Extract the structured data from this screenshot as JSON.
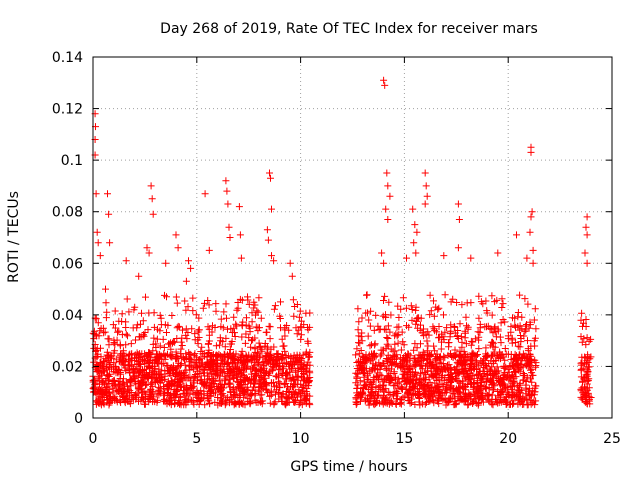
{
  "chart_data": {
    "type": "scatter",
    "title": "Day 268 of 2019, Rate Of TEC Index for receiver mars",
    "xlabel": "GPS time / hours",
    "ylabel": "ROTI / TECUs",
    "xlim": [
      0,
      25
    ],
    "ylim": [
      0,
      0.14
    ],
    "xticks": [
      0,
      5,
      10,
      15,
      20,
      25
    ],
    "yticks": [
      0,
      0.02,
      0.04,
      0.06,
      0.08,
      0.1,
      0.12,
      0.14
    ],
    "xtick_labels": [
      "0",
      "5",
      "10",
      "15",
      "20",
      "25"
    ],
    "ytick_labels": [
      "0",
      "0.02",
      "0.04",
      "0.06",
      "0.08",
      "0.1",
      "0.12",
      "0.14"
    ],
    "grid": true,
    "marker": "plus",
    "color": "#ff0000",
    "gaps": [
      [
        10.45,
        12.65
      ],
      [
        21.35,
        23.5
      ]
    ],
    "series": [
      {
        "name": "ROTI",
        "segments": [
          [
            0.0,
            10.45
          ],
          [
            12.65,
            21.35
          ],
          [
            23.5,
            24.0
          ]
        ],
        "baseline_range": [
          0.005,
          0.025
        ],
        "outliers": [
          {
            "x": 0.1,
            "y": 0.118
          },
          {
            "x": 0.12,
            "y": 0.113
          },
          {
            "x": 0.1,
            "y": 0.108
          },
          {
            "x": 0.1,
            "y": 0.102
          },
          {
            "x": 0.15,
            "y": 0.087
          },
          {
            "x": 0.2,
            "y": 0.072
          },
          {
            "x": 0.25,
            "y": 0.068
          },
          {
            "x": 0.35,
            "y": 0.063
          },
          {
            "x": 0.6,
            "y": 0.05
          },
          {
            "x": 0.7,
            "y": 0.087
          },
          {
            "x": 0.75,
            "y": 0.079
          },
          {
            "x": 0.8,
            "y": 0.068
          },
          {
            "x": 1.6,
            "y": 0.061
          },
          {
            "x": 2.2,
            "y": 0.055
          },
          {
            "x": 2.6,
            "y": 0.066
          },
          {
            "x": 2.7,
            "y": 0.064
          },
          {
            "x": 2.8,
            "y": 0.09
          },
          {
            "x": 2.85,
            "y": 0.085
          },
          {
            "x": 2.9,
            "y": 0.079
          },
          {
            "x": 3.5,
            "y": 0.06
          },
          {
            "x": 4.0,
            "y": 0.071
          },
          {
            "x": 4.1,
            "y": 0.066
          },
          {
            "x": 4.5,
            "y": 0.053
          },
          {
            "x": 4.6,
            "y": 0.061
          },
          {
            "x": 4.7,
            "y": 0.058
          },
          {
            "x": 5.4,
            "y": 0.087
          },
          {
            "x": 5.6,
            "y": 0.065
          },
          {
            "x": 6.4,
            "y": 0.092
          },
          {
            "x": 6.45,
            "y": 0.088
          },
          {
            "x": 6.5,
            "y": 0.083
          },
          {
            "x": 6.55,
            "y": 0.074
          },
          {
            "x": 6.6,
            "y": 0.07
          },
          {
            "x": 7.05,
            "y": 0.082
          },
          {
            "x": 7.1,
            "y": 0.071
          },
          {
            "x": 7.15,
            "y": 0.062
          },
          {
            "x": 8.5,
            "y": 0.095
          },
          {
            "x": 8.55,
            "y": 0.093
          },
          {
            "x": 8.6,
            "y": 0.081
          },
          {
            "x": 8.4,
            "y": 0.073
          },
          {
            "x": 8.45,
            "y": 0.069
          },
          {
            "x": 8.6,
            "y": 0.063
          },
          {
            "x": 8.7,
            "y": 0.061
          },
          {
            "x": 9.5,
            "y": 0.06
          },
          {
            "x": 9.6,
            "y": 0.055
          },
          {
            "x": 14.0,
            "y": 0.131
          },
          {
            "x": 14.05,
            "y": 0.129
          },
          {
            "x": 14.15,
            "y": 0.095
          },
          {
            "x": 14.2,
            "y": 0.09
          },
          {
            "x": 14.3,
            "y": 0.086
          },
          {
            "x": 14.1,
            "y": 0.081
          },
          {
            "x": 14.2,
            "y": 0.077
          },
          {
            "x": 13.9,
            "y": 0.064
          },
          {
            "x": 14.0,
            "y": 0.06
          },
          {
            "x": 15.4,
            "y": 0.081
          },
          {
            "x": 15.5,
            "y": 0.075
          },
          {
            "x": 15.6,
            "y": 0.072
          },
          {
            "x": 15.45,
            "y": 0.068
          },
          {
            "x": 15.55,
            "y": 0.064
          },
          {
            "x": 16.0,
            "y": 0.095
          },
          {
            "x": 16.05,
            "y": 0.09
          },
          {
            "x": 16.1,
            "y": 0.086
          },
          {
            "x": 16.0,
            "y": 0.083
          },
          {
            "x": 15.1,
            "y": 0.062
          },
          {
            "x": 16.9,
            "y": 0.063
          },
          {
            "x": 17.6,
            "y": 0.083
          },
          {
            "x": 17.65,
            "y": 0.077
          },
          {
            "x": 17.6,
            "y": 0.066
          },
          {
            "x": 18.2,
            "y": 0.062
          },
          {
            "x": 19.5,
            "y": 0.064
          },
          {
            "x": 20.4,
            "y": 0.071
          },
          {
            "x": 20.9,
            "y": 0.062
          },
          {
            "x": 21.1,
            "y": 0.105
          },
          {
            "x": 21.1,
            "y": 0.103
          },
          {
            "x": 21.15,
            "y": 0.08
          },
          {
            "x": 21.1,
            "y": 0.078
          },
          {
            "x": 21.05,
            "y": 0.072
          },
          {
            "x": 21.2,
            "y": 0.065
          },
          {
            "x": 21.2,
            "y": 0.06
          },
          {
            "x": 23.8,
            "y": 0.078
          },
          {
            "x": 23.75,
            "y": 0.074
          },
          {
            "x": 23.8,
            "y": 0.071
          },
          {
            "x": 23.7,
            "y": 0.064
          },
          {
            "x": 23.8,
            "y": 0.06
          }
        ]
      }
    ]
  }
}
